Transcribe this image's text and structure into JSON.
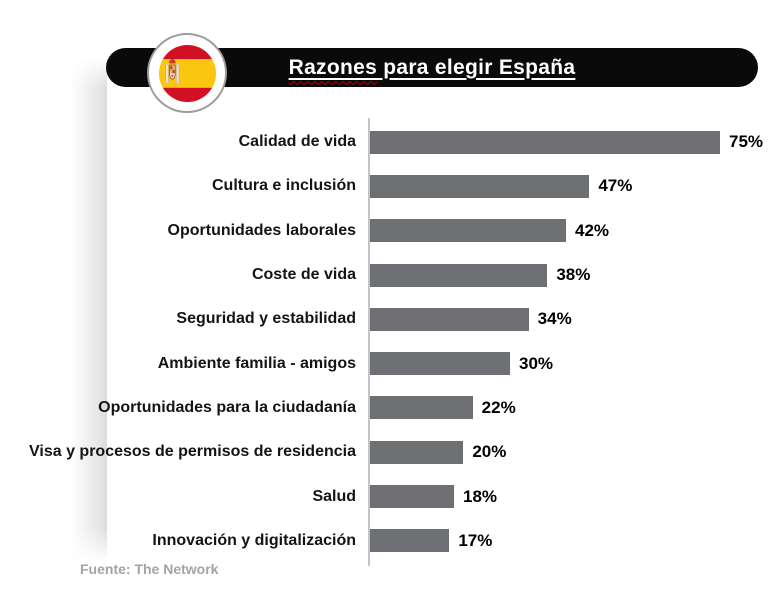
{
  "header": {
    "title": "Razones para elegir España",
    "title_word": "Razones",
    "title_rest": " para elegir España",
    "flag_icon": "spain-flag"
  },
  "chart_data": {
    "type": "bar",
    "orientation": "horizontal",
    "title": "Razones para elegir España",
    "categories": [
      "Calidad de vida",
      "Cultura e inclusión",
      "Oportunidades laborales",
      "Coste de vida",
      "Seguridad y estabilidad",
      "Ambiente familia - amigos",
      "Oportunidades para la ciudadanía",
      "Visa y procesos de permisos de residencia",
      "Salud",
      "Innovación y digitalización"
    ],
    "values": [
      75,
      47,
      42,
      38,
      34,
      30,
      22,
      20,
      18,
      17
    ],
    "value_suffix": "%",
    "xlim": [
      0,
      80
    ],
    "grid": false,
    "legend": false,
    "bar_color": "#6e6f72",
    "axis_color": "#c3c4c6"
  },
  "footer": {
    "source": "Fuente: The Network"
  },
  "colors": {
    "banner_bg": "#0a0a0a",
    "title_text": "#ffffff",
    "misspell_underline": "#bb0000",
    "flag_red": "#d21023",
    "flag_yellow": "#fbc610",
    "badge_ring": "#9b9b9b"
  }
}
